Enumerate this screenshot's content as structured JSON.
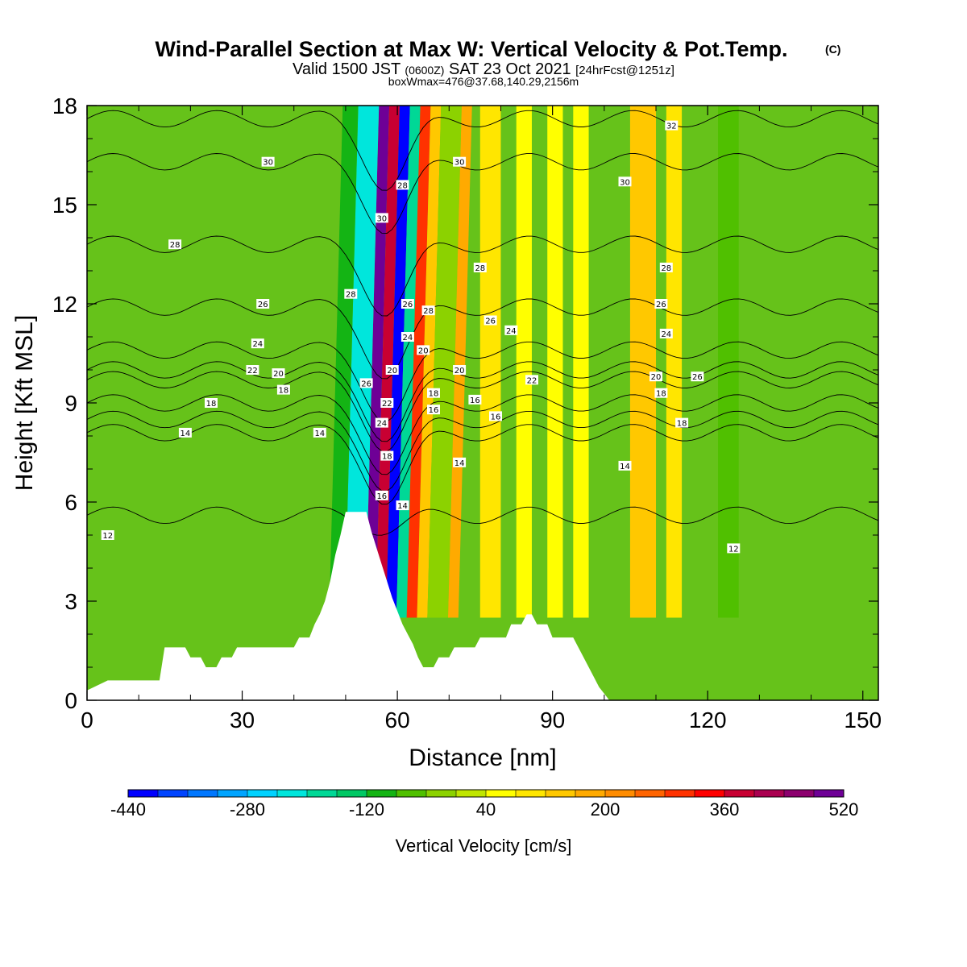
{
  "title": {
    "main": "Wind-Parallel Section at Max W: Vertical Velocity & Pot.Temp.",
    "copyright": "(C)",
    "valid_prefix": "Valid 1500 JST",
    "valid_utc": "(0600Z)",
    "valid_date": "SAT 23 Oct 2021",
    "forecast": "[24hrFcst@1251z]",
    "box_info": "boxWmax=476@37.68,140.29,2156m"
  },
  "chart_data": {
    "type": "heatmap",
    "xlabel": "Distance [nm]",
    "ylabel": "Height [Kft MSL]",
    "xlim": [
      0,
      153
    ],
    "ylim": [
      0,
      18
    ],
    "x_ticks": [
      0,
      30,
      60,
      90,
      120,
      150
    ],
    "y_ticks": [
      0,
      3,
      6,
      9,
      12,
      15,
      18
    ],
    "colorbar": {
      "label": "Vertical Velocity [cm/s]",
      "tick_labels": [
        "-440",
        "-280",
        "-120",
        "40",
        "200",
        "360",
        "520"
      ],
      "colors": [
        "#0000ff",
        "#0044ff",
        "#0077ff",
        "#00a4ff",
        "#00d2ff",
        "#00e6dc",
        "#00d896",
        "#00c864",
        "#14b414",
        "#50c000",
        "#8cd200",
        "#c0e600",
        "#ffff00",
        "#ffe600",
        "#ffc800",
        "#ffaa00",
        "#ff8c00",
        "#ff6400",
        "#ff3200",
        "#ff0000",
        "#c80032",
        "#aa0050",
        "#8c006e",
        "#6e0096"
      ]
    },
    "terrain": [
      [
        0,
        0.3
      ],
      [
        4,
        0.6
      ],
      [
        14,
        0.6
      ],
      [
        15,
        1.6
      ],
      [
        19,
        1.6
      ],
      [
        20,
        1.3
      ],
      [
        22,
        1.3
      ],
      [
        23,
        1.0
      ],
      [
        25,
        1.0
      ],
      [
        26,
        1.3
      ],
      [
        28,
        1.3
      ],
      [
        29,
        1.6
      ],
      [
        40,
        1.6
      ],
      [
        41,
        1.9
      ],
      [
        43,
        1.9
      ],
      [
        44,
        2.3
      ],
      [
        45,
        2.6
      ],
      [
        46,
        3.0
      ],
      [
        47,
        3.6
      ],
      [
        48,
        4.4
      ],
      [
        49,
        5.0
      ],
      [
        50,
        5.7
      ],
      [
        54,
        5.7
      ],
      [
        55,
        5.1
      ],
      [
        56,
        4.6
      ],
      [
        57,
        4.1
      ],
      [
        58,
        3.6
      ],
      [
        59,
        3.1
      ],
      [
        60,
        2.7
      ],
      [
        61,
        2.3
      ],
      [
        62,
        2.0
      ],
      [
        63,
        1.7
      ],
      [
        64,
        1.3
      ],
      [
        65,
        1.0
      ],
      [
        67,
        1.0
      ],
      [
        68,
        1.3
      ],
      [
        70,
        1.3
      ],
      [
        71,
        1.6
      ],
      [
        75,
        1.6
      ],
      [
        76,
        1.9
      ],
      [
        81,
        1.9
      ],
      [
        82,
        2.3
      ],
      [
        84,
        2.3
      ],
      [
        85,
        2.6
      ],
      [
        86,
        2.6
      ],
      [
        87,
        2.3
      ],
      [
        89,
        2.3
      ],
      [
        90,
        1.9
      ],
      [
        94,
        1.9
      ],
      [
        95,
        1.6
      ],
      [
        96,
        1.3
      ],
      [
        97,
        1.0
      ],
      [
        98,
        0.7
      ],
      [
        99,
        0.4
      ],
      [
        100,
        0.2
      ],
      [
        101,
        0.0
      ],
      [
        153,
        0.0
      ]
    ],
    "vertical_velocity_bands": [
      {
        "x0": 56,
        "x1": 58,
        "w": 480
      },
      {
        "x0": 58,
        "x1": 60,
        "w": 380
      },
      {
        "x0": 60,
        "x1": 62,
        "w": -440
      },
      {
        "x0": 62,
        "x1": 64,
        "w": -200
      },
      {
        "x0": 64,
        "x1": 66,
        "w": 280
      },
      {
        "x0": 66,
        "x1": 68,
        "w": 120
      },
      {
        "x0": 52,
        "x1": 56,
        "w": -240
      },
      {
        "x0": 49,
        "x1": 52,
        "w": -120
      },
      {
        "x0": 68,
        "x1": 72,
        "w": -40
      },
      {
        "x0": 72,
        "x1": 74,
        "w": 160
      },
      {
        "x0": 105,
        "x1": 110,
        "w": 120
      },
      {
        "x0": 76,
        "x1": 80,
        "w": 80
      },
      {
        "x0": 83,
        "x1": 86,
        "w": 60
      },
      {
        "x0": 89,
        "x1": 92,
        "w": 60
      },
      {
        "x0": 94,
        "x1": 97,
        "w": 60
      },
      {
        "x0": 112,
        "x1": 115,
        "w": 80
      },
      {
        "x0": 122,
        "x1": 126,
        "w": -60
      }
    ],
    "theta_contours": [
      {
        "label": "12",
        "base": 5.6
      },
      {
        "label": "14",
        "base": 8.1
      },
      {
        "label": "16",
        "base": 8.5
      },
      {
        "label": "18",
        "base": 9.0
      },
      {
        "label": "20",
        "base": 9.7
      },
      {
        "label": "22",
        "base": 10.0
      },
      {
        "label": "24",
        "base": 10.6
      },
      {
        "label": "26",
        "base": 11.9
      },
      {
        "label": "28",
        "base": 13.8
      },
      {
        "label": "30",
        "base": 16.3
      },
      {
        "label": "32",
        "base": 17.6
      }
    ],
    "contour_labels": [
      {
        "x": 4,
        "y": 5.0,
        "text": "12"
      },
      {
        "x": 125,
        "y": 4.6,
        "text": "12"
      },
      {
        "x": 19,
        "y": 8.1,
        "text": "14"
      },
      {
        "x": 45,
        "y": 8.1,
        "text": "14"
      },
      {
        "x": 104,
        "y": 7.1,
        "text": "14"
      },
      {
        "x": 72,
        "y": 7.2,
        "text": "14"
      },
      {
        "x": 61,
        "y": 5.9,
        "text": "14"
      },
      {
        "x": 79,
        "y": 8.6,
        "text": "16"
      },
      {
        "x": 57,
        "y": 6.2,
        "text": "16"
      },
      {
        "x": 67,
        "y": 8.8,
        "text": "16"
      },
      {
        "x": 75,
        "y": 9.1,
        "text": "16"
      },
      {
        "x": 24,
        "y": 9.0,
        "text": "18"
      },
      {
        "x": 38,
        "y": 9.4,
        "text": "18"
      },
      {
        "x": 58,
        "y": 7.4,
        "text": "18"
      },
      {
        "x": 67,
        "y": 9.3,
        "text": "18"
      },
      {
        "x": 111,
        "y": 9.3,
        "text": "18"
      },
      {
        "x": 115,
        "y": 8.4,
        "text": "18"
      },
      {
        "x": 32,
        "y": 10.0,
        "text": "22"
      },
      {
        "x": 58,
        "y": 9.0,
        "text": "22"
      },
      {
        "x": 86,
        "y": 9.7,
        "text": "22"
      },
      {
        "x": 37,
        "y": 9.9,
        "text": "20"
      },
      {
        "x": 59,
        "y": 10.0,
        "text": "20"
      },
      {
        "x": 65,
        "y": 10.6,
        "text": "20"
      },
      {
        "x": 72,
        "y": 10.0,
        "text": "20"
      },
      {
        "x": 110,
        "y": 9.8,
        "text": "20"
      },
      {
        "x": 33,
        "y": 10.8,
        "text": "24"
      },
      {
        "x": 57,
        "y": 8.4,
        "text": "24"
      },
      {
        "x": 62,
        "y": 11.0,
        "text": "24"
      },
      {
        "x": 82,
        "y": 11.2,
        "text": "24"
      },
      {
        "x": 112,
        "y": 11.1,
        "text": "24"
      },
      {
        "x": 34,
        "y": 12.0,
        "text": "26"
      },
      {
        "x": 54,
        "y": 9.6,
        "text": "26"
      },
      {
        "x": 62,
        "y": 12.0,
        "text": "26"
      },
      {
        "x": 78,
        "y": 11.5,
        "text": "26"
      },
      {
        "x": 111,
        "y": 12.0,
        "text": "26"
      },
      {
        "x": 118,
        "y": 9.8,
        "text": "26"
      },
      {
        "x": 17,
        "y": 13.8,
        "text": "28"
      },
      {
        "x": 51,
        "y": 12.3,
        "text": "28"
      },
      {
        "x": 61,
        "y": 15.6,
        "text": "28"
      },
      {
        "x": 66,
        "y": 11.8,
        "text": "28"
      },
      {
        "x": 76,
        "y": 13.1,
        "text": "28"
      },
      {
        "x": 112,
        "y": 13.1,
        "text": "28"
      },
      {
        "x": 35,
        "y": 16.3,
        "text": "30"
      },
      {
        "x": 57,
        "y": 14.6,
        "text": "30"
      },
      {
        "x": 72,
        "y": 16.3,
        "text": "30"
      },
      {
        "x": 104,
        "y": 15.7,
        "text": "30"
      },
      {
        "x": 113,
        "y": 17.4,
        "text": "32"
      }
    ]
  }
}
